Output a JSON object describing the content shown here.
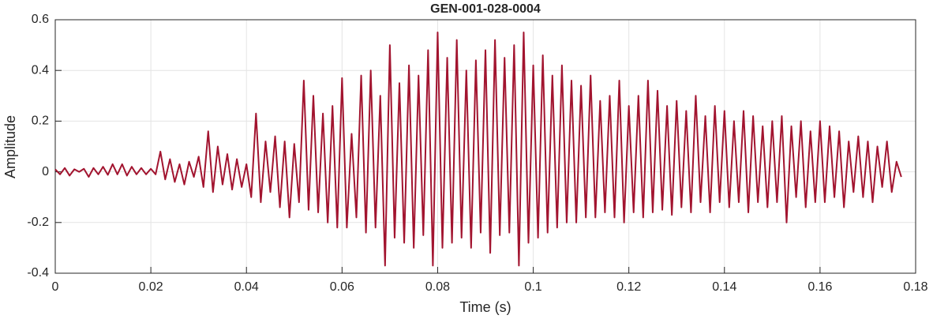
{
  "chart_data": {
    "type": "line",
    "title": "GEN-001-028-0004",
    "xlabel": "Time (s)",
    "ylabel": "Amplitude",
    "x": [
      0,
      0.001,
      0.002,
      0.003,
      0.004,
      0.005,
      0.006,
      0.007,
      0.008,
      0.009,
      0.01,
      0.011,
      0.012,
      0.013,
      0.014,
      0.015,
      0.016,
      0.017,
      0.018,
      0.019,
      0.02,
      0.021,
      0.022,
      0.023,
      0.024,
      0.025,
      0.026,
      0.027,
      0.028,
      0.029,
      0.03,
      0.031,
      0.032,
      0.033,
      0.034,
      0.035,
      0.036,
      0.037,
      0.038,
      0.039,
      0.04,
      0.041,
      0.042,
      0.043,
      0.044,
      0.045,
      0.046,
      0.047,
      0.048,
      0.049,
      0.05,
      0.051,
      0.052,
      0.053,
      0.054,
      0.055,
      0.056,
      0.057,
      0.058,
      0.059,
      0.06,
      0.061,
      0.062,
      0.063,
      0.064,
      0.065,
      0.066,
      0.067,
      0.068,
      0.069,
      0.07,
      0.071,
      0.072,
      0.073,
      0.074,
      0.075,
      0.076,
      0.077,
      0.078,
      0.079,
      0.08,
      0.081,
      0.082,
      0.083,
      0.084,
      0.085,
      0.086,
      0.087,
      0.088,
      0.089,
      0.09,
      0.091,
      0.092,
      0.093,
      0.094,
      0.095,
      0.096,
      0.097,
      0.098,
      0.099,
      0.1,
      0.101,
      0.102,
      0.103,
      0.104,
      0.105,
      0.106,
      0.107,
      0.108,
      0.109,
      0.11,
      0.111,
      0.112,
      0.113,
      0.114,
      0.115,
      0.116,
      0.117,
      0.118,
      0.119,
      0.12,
      0.121,
      0.122,
      0.123,
      0.124,
      0.125,
      0.126,
      0.127,
      0.128,
      0.129,
      0.13,
      0.131,
      0.132,
      0.133,
      0.134,
      0.135,
      0.136,
      0.137,
      0.138,
      0.139,
      0.14,
      0.141,
      0.142,
      0.143,
      0.144,
      0.145,
      0.146,
      0.147,
      0.148,
      0.149,
      0.15,
      0.151,
      0.152,
      0.153,
      0.154,
      0.155,
      0.156,
      0.157,
      0.158,
      0.159,
      0.16,
      0.161,
      0.162,
      0.163,
      0.164,
      0.165,
      0.166,
      0.167,
      0.168,
      0.169,
      0.17,
      0.171,
      0.172,
      0.173,
      0.174,
      0.175,
      0.176,
      0.177
    ],
    "series": [
      {
        "color": "#a2142f",
        "values": [
          0.01,
          -0.01,
          0.015,
          -0.015,
          0.01,
          0,
          0.012,
          -0.02,
          0.015,
          -0.01,
          0.02,
          -0.012,
          0.03,
          -0.01,
          0.03,
          -0.015,
          0.02,
          -0.01,
          0.015,
          -0.01,
          0.012,
          -0.01,
          0.08,
          -0.03,
          0.05,
          -0.04,
          0.03,
          -0.05,
          0.04,
          -0.02,
          0.06,
          -0.06,
          0.16,
          -0.08,
          0.1,
          -0.05,
          0.07,
          -0.07,
          0.05,
          -0.06,
          0.03,
          -0.1,
          0.23,
          -0.12,
          0.12,
          -0.08,
          0.14,
          -0.14,
          0.12,
          -0.18,
          0.11,
          -0.12,
          0.36,
          -0.15,
          0.3,
          -0.16,
          0.23,
          -0.2,
          0.26,
          -0.22,
          0.37,
          -0.22,
          0.15,
          -0.18,
          0.38,
          -0.24,
          0.4,
          -0.22,
          0.3,
          -0.37,
          0.5,
          -0.26,
          0.35,
          -0.28,
          0.42,
          -0.3,
          0.38,
          -0.25,
          0.48,
          -0.37,
          0.55,
          -0.3,
          0.45,
          -0.28,
          0.52,
          -0.26,
          0.4,
          -0.3,
          0.44,
          -0.24,
          0.48,
          -0.32,
          0.52,
          -0.25,
          0.45,
          -0.24,
          0.5,
          -0.37,
          0.55,
          -0.28,
          0.42,
          -0.26,
          0.46,
          -0.24,
          0.38,
          -0.22,
          0.42,
          -0.2,
          0.36,
          -0.2,
          0.34,
          -0.18,
          0.38,
          -0.18,
          0.28,
          -0.16,
          0.3,
          -0.18,
          0.36,
          -0.2,
          0.26,
          -0.16,
          0.3,
          -0.18,
          0.36,
          -0.16,
          0.32,
          -0.15,
          0.26,
          -0.17,
          0.28,
          -0.14,
          0.24,
          -0.16,
          0.3,
          -0.12,
          0.22,
          -0.16,
          0.26,
          -0.12,
          0.24,
          -0.14,
          0.2,
          -0.12,
          0.24,
          -0.16,
          0.22,
          -0.12,
          0.18,
          -0.14,
          0.2,
          -0.12,
          0.22,
          -0.2,
          0.18,
          -0.1,
          0.2,
          -0.14,
          0.16,
          -0.12,
          0.2,
          -0.12,
          0.18,
          -0.1,
          0.16,
          -0.14,
          0.12,
          -0.08,
          0.14,
          -0.1,
          0.12,
          -0.12,
          0.1,
          -0.06,
          0.12,
          -0.08,
          0.04,
          -0.02
        ]
      }
    ],
    "xlim": [
      0,
      0.18
    ],
    "xticks": [
      0,
      0.02,
      0.04,
      0.06,
      0.08,
      0.1,
      0.12,
      0.14,
      0.16,
      0.18
    ],
    "ylim": [
      -0.4,
      0.6
    ],
    "yticks": [
      -0.4,
      -0.2,
      0,
      0.2,
      0.4,
      0.6
    ],
    "grid": true
  }
}
